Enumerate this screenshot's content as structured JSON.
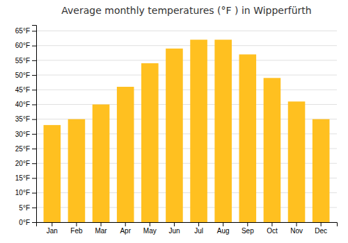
{
  "chart_data": {
    "type": "bar",
    "title": "Average monthly temperatures (°F ) in Wipperfürth",
    "categories": [
      "Jan",
      "Feb",
      "Mar",
      "Apr",
      "May",
      "Jun",
      "Jul",
      "Aug",
      "Sep",
      "Oct",
      "Nov",
      "Dec"
    ],
    "values": [
      33,
      35,
      40,
      46,
      54,
      59,
      62,
      62,
      57,
      49,
      41,
      35
    ],
    "color": "#FFC020",
    "ylim": [
      0,
      67
    ],
    "yticks": [
      {
        "value": 0,
        "label": "0°F"
      },
      {
        "value": 5,
        "label": "5°F"
      },
      {
        "value": 10,
        "label": "10°F"
      },
      {
        "value": 15,
        "label": "15°F"
      },
      {
        "value": 20,
        "label": "20°F"
      },
      {
        "value": 25,
        "label": "25°F"
      },
      {
        "value": 30,
        "label": "30°F"
      },
      {
        "value": 35,
        "label": "35°F"
      },
      {
        "value": 40,
        "label": "40°F"
      },
      {
        "value": 45,
        "label": "45°F"
      },
      {
        "value": 50,
        "label": "50°F"
      },
      {
        "value": 55,
        "label": "55°F"
      },
      {
        "value": 60,
        "label": "60°F"
      },
      {
        "value": 65,
        "label": "65°F"
      }
    ],
    "grid": true
  }
}
